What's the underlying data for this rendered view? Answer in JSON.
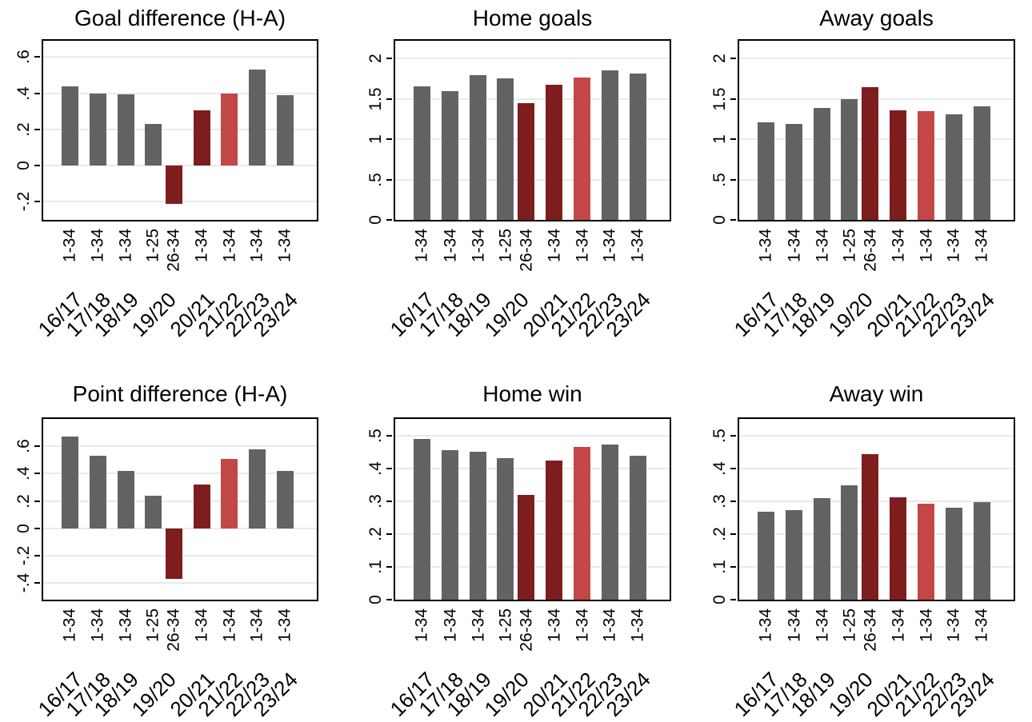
{
  "colors": {
    "bar_default": "#636363",
    "bar_highlight_dark": "#7E1D1D",
    "bar_highlight_light": "#C34747",
    "gridline": "#E9E9E9",
    "axis": "#000000",
    "text": "#000000",
    "background": "#FFFFFF"
  },
  "x_axis": {
    "bar_labels": [
      "1-34",
      "1-34",
      "1-34",
      "1-25",
      "26-34",
      "1-34",
      "1-34",
      "1-34",
      "1-34"
    ],
    "season_labels": [
      "16/17",
      "17/18",
      "18/19",
      "19/20",
      "20/21",
      "21/22",
      "22/23",
      "23/24"
    ],
    "bar_color_keys": [
      "default",
      "default",
      "default",
      "default",
      "highlight_dark",
      "highlight_dark",
      "highlight_light",
      "default",
      "default"
    ],
    "bar_season_index": [
      0,
      1,
      2,
      3,
      3,
      4,
      5,
      6,
      7
    ]
  },
  "chart_data": [
    {
      "type": "bar",
      "title": "Goal difference (H-A)",
      "categories": [
        "16/17 1-34",
        "17/18 1-34",
        "18/19 1-34",
        "19/20 1-25",
        "19/20 26-34",
        "20/21 1-34",
        "21/22 1-34",
        "22/23 1-34",
        "23/24 1-34"
      ],
      "values": [
        0.44,
        0.4,
        0.395,
        0.23,
        -0.21,
        0.305,
        0.4,
        0.53,
        0.39
      ],
      "y_ticks": [
        0.6,
        0.4,
        0.2,
        0,
        -0.2
      ],
      "y_tick_labels": [
        ".6",
        ".4",
        ".2",
        "0",
        "-.2"
      ],
      "ylim": [
        -0.3,
        0.69
      ],
      "grid": true,
      "xlabel": "",
      "ylabel": ""
    },
    {
      "type": "bar",
      "title": "Home goals",
      "categories": [
        "16/17 1-34",
        "17/18 1-34",
        "18/19 1-34",
        "19/20 1-25",
        "19/20 26-34",
        "20/21 1-34",
        "21/22 1-34",
        "22/23 1-34",
        "23/24 1-34"
      ],
      "values": [
        1.66,
        1.6,
        1.79,
        1.75,
        1.45,
        1.67,
        1.76,
        1.85,
        1.81
      ],
      "y_ticks": [
        2,
        1.5,
        1,
        0.5,
        0
      ],
      "y_tick_labels": [
        "2",
        "1.5",
        "1",
        ".5",
        "0"
      ],
      "ylim": [
        0,
        2.22
      ],
      "grid": true,
      "xlabel": "",
      "ylabel": ""
    },
    {
      "type": "bar",
      "title": "Away goals",
      "categories": [
        "16/17 1-34",
        "17/18 1-34",
        "18/19 1-34",
        "19/20 1-25",
        "19/20 26-34",
        "20/21 1-34",
        "21/22 1-34",
        "22/23 1-34",
        "23/24 1-34"
      ],
      "values": [
        1.21,
        1.19,
        1.39,
        1.5,
        1.65,
        1.36,
        1.35,
        1.31,
        1.41
      ],
      "y_ticks": [
        2,
        1.5,
        1,
        0.5,
        0
      ],
      "y_tick_labels": [
        "2",
        "1.5",
        "1",
        ".5",
        "0"
      ],
      "ylim": [
        0,
        2.22
      ],
      "grid": true,
      "xlabel": "",
      "ylabel": ""
    },
    {
      "type": "bar",
      "title": "Point difference (H-A)",
      "categories": [
        "16/17 1-34",
        "17/18 1-34",
        "18/19 1-34",
        "19/20 1-25",
        "19/20 26-34",
        "20/21 1-34",
        "21/22 1-34",
        "22/23 1-34",
        "23/24 1-34"
      ],
      "values": [
        0.67,
        0.53,
        0.42,
        0.24,
        -0.37,
        0.32,
        0.51,
        0.58,
        0.42
      ],
      "y_ticks": [
        0.6,
        0.4,
        0.2,
        0,
        -0.2,
        -0.4
      ],
      "y_tick_labels": [
        ".6",
        ".4",
        ".2",
        "0",
        "-.2",
        "-.4"
      ],
      "ylim": [
        -0.52,
        0.8
      ],
      "grid": true,
      "xlabel": "",
      "ylabel": ""
    },
    {
      "type": "bar",
      "title": "Home win",
      "categories": [
        "16/17 1-34",
        "17/18 1-34",
        "18/19 1-34",
        "19/20 1-25",
        "19/20 26-34",
        "20/21 1-34",
        "21/22 1-34",
        "22/23 1-34",
        "23/24 1-34"
      ],
      "values": [
        0.49,
        0.455,
        0.451,
        0.43,
        0.32,
        0.424,
        0.465,
        0.472,
        0.438
      ],
      "y_ticks": [
        0.5,
        0.4,
        0.3,
        0.2,
        0.1,
        0
      ],
      "y_tick_labels": [
        ".5",
        ".4",
        ".3",
        ".2",
        ".1",
        "0"
      ],
      "ylim": [
        0,
        0.55
      ],
      "grid": true,
      "xlabel": "",
      "ylabel": ""
    },
    {
      "type": "bar",
      "title": "Away win",
      "categories": [
        "16/17 1-34",
        "17/18 1-34",
        "18/19 1-34",
        "19/20 1-25",
        "19/20 26-34",
        "20/21 1-34",
        "21/22 1-34",
        "22/23 1-34",
        "23/24 1-34"
      ],
      "values": [
        0.268,
        0.273,
        0.309,
        0.349,
        0.443,
        0.312,
        0.293,
        0.28,
        0.296
      ],
      "y_ticks": [
        0.5,
        0.4,
        0.3,
        0.2,
        0.1,
        0
      ],
      "y_tick_labels": [
        ".5",
        ".4",
        ".3",
        ".2",
        ".1",
        "0"
      ],
      "ylim": [
        0,
        0.55
      ],
      "grid": true,
      "xlabel": "",
      "ylabel": ""
    }
  ]
}
